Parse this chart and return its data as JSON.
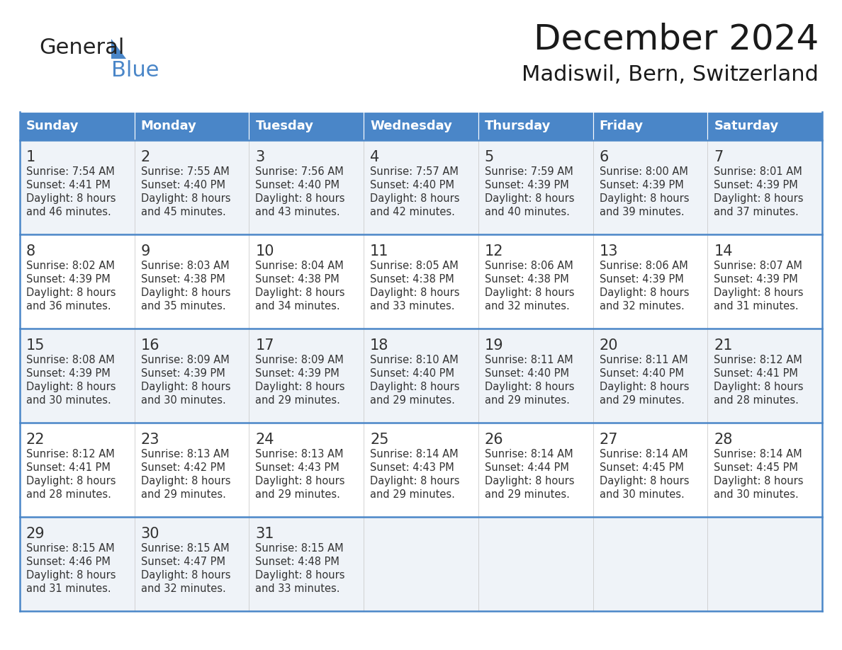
{
  "title": "December 2024",
  "subtitle": "Madiswil, Bern, Switzerland",
  "header_bg": "#4a86c8",
  "header_text": "#ffffff",
  "day_names": [
    "Sunday",
    "Monday",
    "Tuesday",
    "Wednesday",
    "Thursday",
    "Friday",
    "Saturday"
  ],
  "row_bg_even": "#eff3f8",
  "row_bg_odd": "#ffffff",
  "border_color": "#4a86c8",
  "text_color": "#333333",
  "num_color": "#333333",
  "calendar": [
    [
      {
        "day": 1,
        "sunrise": "7:54 AM",
        "sunset": "4:41 PM",
        "daylight": "8 hours and 46 minutes."
      },
      {
        "day": 2,
        "sunrise": "7:55 AM",
        "sunset": "4:40 PM",
        "daylight": "8 hours and 45 minutes."
      },
      {
        "day": 3,
        "sunrise": "7:56 AM",
        "sunset": "4:40 PM",
        "daylight": "8 hours and 43 minutes."
      },
      {
        "day": 4,
        "sunrise": "7:57 AM",
        "sunset": "4:40 PM",
        "daylight": "8 hours and 42 minutes."
      },
      {
        "day": 5,
        "sunrise": "7:59 AM",
        "sunset": "4:39 PM",
        "daylight": "8 hours and 40 minutes."
      },
      {
        "day": 6,
        "sunrise": "8:00 AM",
        "sunset": "4:39 PM",
        "daylight": "8 hours and 39 minutes."
      },
      {
        "day": 7,
        "sunrise": "8:01 AM",
        "sunset": "4:39 PM",
        "daylight": "8 hours and 37 minutes."
      }
    ],
    [
      {
        "day": 8,
        "sunrise": "8:02 AM",
        "sunset": "4:39 PM",
        "daylight": "8 hours and 36 minutes."
      },
      {
        "day": 9,
        "sunrise": "8:03 AM",
        "sunset": "4:38 PM",
        "daylight": "8 hours and 35 minutes."
      },
      {
        "day": 10,
        "sunrise": "8:04 AM",
        "sunset": "4:38 PM",
        "daylight": "8 hours and 34 minutes."
      },
      {
        "day": 11,
        "sunrise": "8:05 AM",
        "sunset": "4:38 PM",
        "daylight": "8 hours and 33 minutes."
      },
      {
        "day": 12,
        "sunrise": "8:06 AM",
        "sunset": "4:38 PM",
        "daylight": "8 hours and 32 minutes."
      },
      {
        "day": 13,
        "sunrise": "8:06 AM",
        "sunset": "4:39 PM",
        "daylight": "8 hours and 32 minutes."
      },
      {
        "day": 14,
        "sunrise": "8:07 AM",
        "sunset": "4:39 PM",
        "daylight": "8 hours and 31 minutes."
      }
    ],
    [
      {
        "day": 15,
        "sunrise": "8:08 AM",
        "sunset": "4:39 PM",
        "daylight": "8 hours and 30 minutes."
      },
      {
        "day": 16,
        "sunrise": "8:09 AM",
        "sunset": "4:39 PM",
        "daylight": "8 hours and 30 minutes."
      },
      {
        "day": 17,
        "sunrise": "8:09 AM",
        "sunset": "4:39 PM",
        "daylight": "8 hours and 29 minutes."
      },
      {
        "day": 18,
        "sunrise": "8:10 AM",
        "sunset": "4:40 PM",
        "daylight": "8 hours and 29 minutes."
      },
      {
        "day": 19,
        "sunrise": "8:11 AM",
        "sunset": "4:40 PM",
        "daylight": "8 hours and 29 minutes."
      },
      {
        "day": 20,
        "sunrise": "8:11 AM",
        "sunset": "4:40 PM",
        "daylight": "8 hours and 29 minutes."
      },
      {
        "day": 21,
        "sunrise": "8:12 AM",
        "sunset": "4:41 PM",
        "daylight": "8 hours and 28 minutes."
      }
    ],
    [
      {
        "day": 22,
        "sunrise": "8:12 AM",
        "sunset": "4:41 PM",
        "daylight": "8 hours and 28 minutes."
      },
      {
        "day": 23,
        "sunrise": "8:13 AM",
        "sunset": "4:42 PM",
        "daylight": "8 hours and 29 minutes."
      },
      {
        "day": 24,
        "sunrise": "8:13 AM",
        "sunset": "4:43 PM",
        "daylight": "8 hours and 29 minutes."
      },
      {
        "day": 25,
        "sunrise": "8:14 AM",
        "sunset": "4:43 PM",
        "daylight": "8 hours and 29 minutes."
      },
      {
        "day": 26,
        "sunrise": "8:14 AM",
        "sunset": "4:44 PM",
        "daylight": "8 hours and 29 minutes."
      },
      {
        "day": 27,
        "sunrise": "8:14 AM",
        "sunset": "4:45 PM",
        "daylight": "8 hours and 30 minutes."
      },
      {
        "day": 28,
        "sunrise": "8:14 AM",
        "sunset": "4:45 PM",
        "daylight": "8 hours and 30 minutes."
      }
    ],
    [
      {
        "day": 29,
        "sunrise": "8:15 AM",
        "sunset": "4:46 PM",
        "daylight": "8 hours and 31 minutes."
      },
      {
        "day": 30,
        "sunrise": "8:15 AM",
        "sunset": "4:47 PM",
        "daylight": "8 hours and 32 minutes."
      },
      {
        "day": 31,
        "sunrise": "8:15 AM",
        "sunset": "4:48 PM",
        "daylight": "8 hours and 33 minutes."
      },
      null,
      null,
      null,
      null
    ]
  ],
  "logo_text1": "General",
  "logo_text2": "Blue",
  "logo_triangle_color": "#4a86c8",
  "fig_width": 11.88,
  "fig_height": 9.18,
  "dpi": 100
}
